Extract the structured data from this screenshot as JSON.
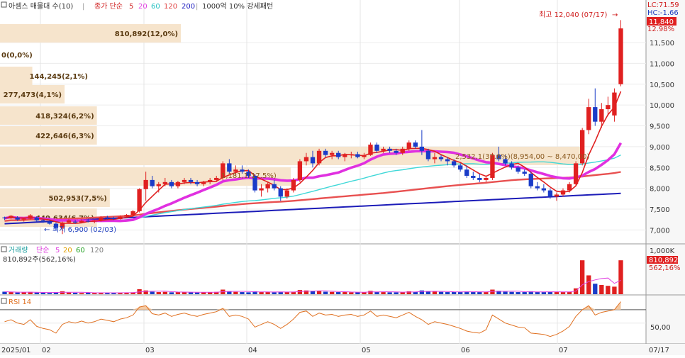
{
  "legend": {
    "title": "아셈스 매물대 수(10)",
    "ma_label": "종가 단순",
    "ma_periods": [
      {
        "label": "5",
        "color": "#e040e0"
      },
      {
        "label": "20",
        "color": "#e040e0"
      },
      {
        "label": "60",
        "color": "#20c0c0"
      },
      {
        "label": "120",
        "color": "#e04040"
      },
      {
        "label": "200",
        "color": "#2020c0"
      }
    ],
    "extra": "1000억 10% 강세패턴"
  },
  "right_info": {
    "lc": "LC:71.59",
    "hc": "HC:-1.66",
    "current_pct": "12.98%",
    "current_price": "11,840"
  },
  "annotations": {
    "high": "최고 12,040 (07/17)",
    "low": "최저 6,900 (02/03)",
    "range": "2,532,1(37.6%)(8,954,00 ~ 8,470,00)",
    "mid_label": "1,181,1(17.5%)"
  },
  "volume_profile": [
    {
      "label": "810,892(12,0%)",
      "width": 0.28
    },
    {
      "label": "0(0,0%)",
      "width": 0.0
    },
    {
      "label": "144,245(2,1%)",
      "width": 0.05
    },
    {
      "label": "277,473(4,1%)",
      "width": 0.1
    },
    {
      "label": "418,324(6,2%)",
      "width": 0.15
    },
    {
      "label": "422,646(6,3%)",
      "width": 0.15
    },
    {
      "label": "",
      "width": 0.9
    },
    {
      "label": "",
      "width": 0.45
    },
    {
      "label": "502,953(7,5%)",
      "width": 0.17
    },
    {
      "label": "449,634(6,7%)",
      "width": 0.15
    }
  ],
  "volume_panel": {
    "legend_title": "거래량",
    "ma_label": "단순",
    "ma_periods": [
      {
        "label": "5",
        "color": "#e040e0"
      },
      {
        "label": "20",
        "color": "#e0a000"
      },
      {
        "label": "60",
        "color": "#20a020"
      },
      {
        "label": "120",
        "color": "#808080"
      }
    ],
    "value_line": "810,892주(562,16%)",
    "right_top": "1,000K",
    "right_value": "810,892",
    "right_pct": "562,16%"
  },
  "rsi_panel": {
    "legend": "RSI 14",
    "level_label": "50,00"
  },
  "chart_data": {
    "type": "candlestick",
    "yticks": [
      "11,500",
      "11,000",
      "10,500",
      "10,000",
      "9,500",
      "9,000",
      "8,500",
      "8,000",
      "7,500",
      "7,000"
    ],
    "ylim": [
      6700,
      12250
    ],
    "xticks": [
      "2025/01",
      "02",
      "03",
      "04",
      "05",
      "06",
      "07",
      "07/17"
    ],
    "candles": [
      [
        7300,
        7320,
        7240,
        7280
      ],
      [
        7280,
        7360,
        7260,
        7340
      ],
      [
        7300,
        7330,
        7220,
        7250
      ],
      [
        7250,
        7290,
        7200,
        7270
      ],
      [
        7270,
        7380,
        7250,
        7350
      ],
      [
        7300,
        7330,
        7200,
        7230
      ],
      [
        7230,
        7260,
        7170,
        7200
      ],
      [
        7200,
        7230,
        7130,
        7150
      ],
      [
        7150,
        7180,
        7000,
        7050
      ],
      [
        7050,
        7200,
        6900,
        7180
      ],
      [
        7180,
        7260,
        7150,
        7230
      ],
      [
        7200,
        7240,
        7150,
        7180
      ],
      [
        7180,
        7250,
        7160,
        7220
      ],
      [
        7220,
        7260,
        7180,
        7200
      ],
      [
        7200,
        7240,
        7160,
        7230
      ],
      [
        7230,
        7330,
        7200,
        7300
      ],
      [
        7300,
        7340,
        7250,
        7280
      ],
      [
        7280,
        7320,
        7240,
        7260
      ],
      [
        7260,
        7350,
        7250,
        7320
      ],
      [
        7320,
        7380,
        7300,
        7360
      ],
      [
        7360,
        7480,
        7340,
        7450
      ],
      [
        7450,
        8000,
        7420,
        7980
      ],
      [
        7980,
        8400,
        7700,
        8200
      ],
      [
        8200,
        8300,
        8000,
        8050
      ],
      [
        8050,
        8150,
        7900,
        8100
      ],
      [
        8100,
        8250,
        8050,
        8150
      ],
      [
        8150,
        8200,
        8000,
        8050
      ],
      [
        8050,
        8180,
        8000,
        8150
      ],
      [
        8150,
        8250,
        8100,
        8200
      ],
      [
        8200,
        8250,
        8100,
        8150
      ],
      [
        8150,
        8200,
        8050,
        8100
      ],
      [
        8100,
        8180,
        8050,
        8150
      ],
      [
        8150,
        8250,
        8100,
        8200
      ],
      [
        8200,
        8300,
        8150,
        8250
      ],
      [
        8250,
        8650,
        8200,
        8600
      ],
      [
        8600,
        8700,
        8350,
        8400
      ],
      [
        8400,
        8550,
        8300,
        8450
      ],
      [
        8450,
        8550,
        8350,
        8400
      ],
      [
        8400,
        8450,
        8250,
        8300
      ],
      [
        8300,
        8350,
        7900,
        7950
      ],
      [
        7950,
        8100,
        7800,
        8000
      ],
      [
        8000,
        8150,
        7900,
        8100
      ],
      [
        8100,
        8200,
        7950,
        8000
      ],
      [
        8000,
        8050,
        7700,
        7800
      ],
      [
        7800,
        8000,
        7750,
        7950
      ],
      [
        7950,
        8250,
        7900,
        8200
      ],
      [
        8200,
        8700,
        8150,
        8650
      ],
      [
        8650,
        8850,
        8550,
        8750
      ],
      [
        8750,
        8900,
        8500,
        8600
      ],
      [
        8600,
        8950,
        8550,
        8900
      ],
      [
        8900,
        8950,
        8750,
        8800
      ],
      [
        8800,
        8900,
        8700,
        8850
      ],
      [
        8850,
        8900,
        8700,
        8750
      ],
      [
        8750,
        8850,
        8650,
        8800
      ],
      [
        8800,
        8880,
        8720,
        8820
      ],
      [
        8820,
        8880,
        8720,
        8750
      ],
      [
        8750,
        8850,
        8700,
        8800
      ],
      [
        8800,
        9100,
        8780,
        9050
      ],
      [
        9050,
        9100,
        8850,
        8900
      ],
      [
        8900,
        9000,
        8850,
        8950
      ],
      [
        8950,
        9000,
        8850,
        8900
      ],
      [
        8900,
        8950,
        8800,
        8850
      ],
      [
        8850,
        9000,
        8800,
        8950
      ],
      [
        8950,
        9150,
        8900,
        9100
      ],
      [
        9100,
        9150,
        8950,
        9000
      ],
      [
        9000,
        9400,
        8800,
        8900
      ],
      [
        8900,
        8950,
        8650,
        8700
      ],
      [
        8700,
        8850,
        8600,
        8750
      ],
      [
        8750,
        8800,
        8650,
        8700
      ],
      [
        8700,
        8750,
        8550,
        8650
      ],
      [
        8650,
        8700,
        8500,
        8550
      ],
      [
        8550,
        8600,
        8400,
        8450
      ],
      [
        8450,
        8550,
        8250,
        8300
      ],
      [
        8300,
        8400,
        8200,
        8250
      ],
      [
        8250,
        8350,
        8150,
        8200
      ],
      [
        8200,
        8300,
        8150,
        8250
      ],
      [
        8250,
        8850,
        8200,
        8800
      ],
      [
        8800,
        9000,
        8650,
        8700
      ],
      [
        8700,
        8800,
        8550,
        8600
      ],
      [
        8600,
        8650,
        8450,
        8500
      ],
      [
        8500,
        8550,
        8350,
        8400
      ],
      [
        8400,
        8450,
        8300,
        8350
      ],
      [
        8350,
        8400,
        8000,
        8050
      ],
      [
        8050,
        8150,
        7950,
        8000
      ],
      [
        8000,
        8100,
        7900,
        7950
      ],
      [
        7950,
        8000,
        7750,
        7800
      ],
      [
        7800,
        7900,
        7700,
        7850
      ],
      [
        7850,
        8000,
        7800,
        7950
      ],
      [
        7950,
        8150,
        7900,
        8100
      ],
      [
        8100,
        8650,
        8050,
        8600
      ],
      [
        8600,
        9450,
        8550,
        9400
      ],
      [
        9400,
        10150,
        9300,
        9950
      ],
      [
        9950,
        10400,
        9500,
        9600
      ],
      [
        9600,
        10050,
        9450,
        9900
      ],
      [
        9900,
        10200,
        9750,
        10000
      ],
      [
        9750,
        10400,
        9600,
        10300
      ],
      [
        10500,
        12040,
        10450,
        11840
      ]
    ],
    "volume_ylim": [
      0,
      1000000
    ],
    "volume": [
      60000,
      50000,
      40000,
      45000,
      55000,
      40000,
      35000,
      30000,
      50000,
      70000,
      40000,
      35000,
      30000,
      35000,
      30000,
      40000,
      35000,
      30000,
      35000,
      40000,
      45000,
      120000,
      90000,
      60000,
      50000,
      55000,
      45000,
      50000,
      55000,
      45000,
      40000,
      45000,
      50000,
      55000,
      110000,
      70000,
      55000,
      50000,
      45000,
      70000,
      55000,
      50000,
      45000,
      60000,
      50000,
      60000,
      100000,
      90000,
      70000,
      80000,
      60000,
      55000,
      50000,
      50000,
      45000,
      45000,
      50000,
      80000,
      60000,
      50000,
      45000,
      45000,
      50000,
      70000,
      60000,
      90000,
      70000,
      60000,
      55000,
      50000,
      55000,
      60000,
      65000,
      55000,
      50000,
      50000,
      110000,
      80000,
      60000,
      55000,
      50000,
      50000,
      70000,
      55000,
      50000,
      60000,
      55000,
      50000,
      60000,
      140000,
      810892,
      450000,
      250000,
      220000,
      200000,
      180000,
      810892
    ],
    "rsi": [
      52,
      55,
      50,
      48,
      55,
      45,
      42,
      40,
      35,
      48,
      52,
      50,
      53,
      50,
      52,
      56,
      54,
      52,
      56,
      58,
      62,
      74,
      76,
      64,
      62,
      65,
      60,
      63,
      65,
      62,
      60,
      63,
      65,
      67,
      72,
      60,
      62,
      60,
      56,
      44,
      48,
      52,
      48,
      42,
      48,
      56,
      66,
      68,
      60,
      65,
      62,
      63,
      60,
      62,
      63,
      60,
      62,
      68,
      60,
      62,
      60,
      58,
      62,
      66,
      60,
      55,
      48,
      52,
      50,
      48,
      45,
      42,
      38,
      36,
      35,
      40,
      62,
      56,
      50,
      47,
      44,
      43,
      35,
      34,
      33,
      30,
      33,
      38,
      45,
      60,
      70,
      76,
      62,
      66,
      68,
      70,
      82
    ]
  }
}
